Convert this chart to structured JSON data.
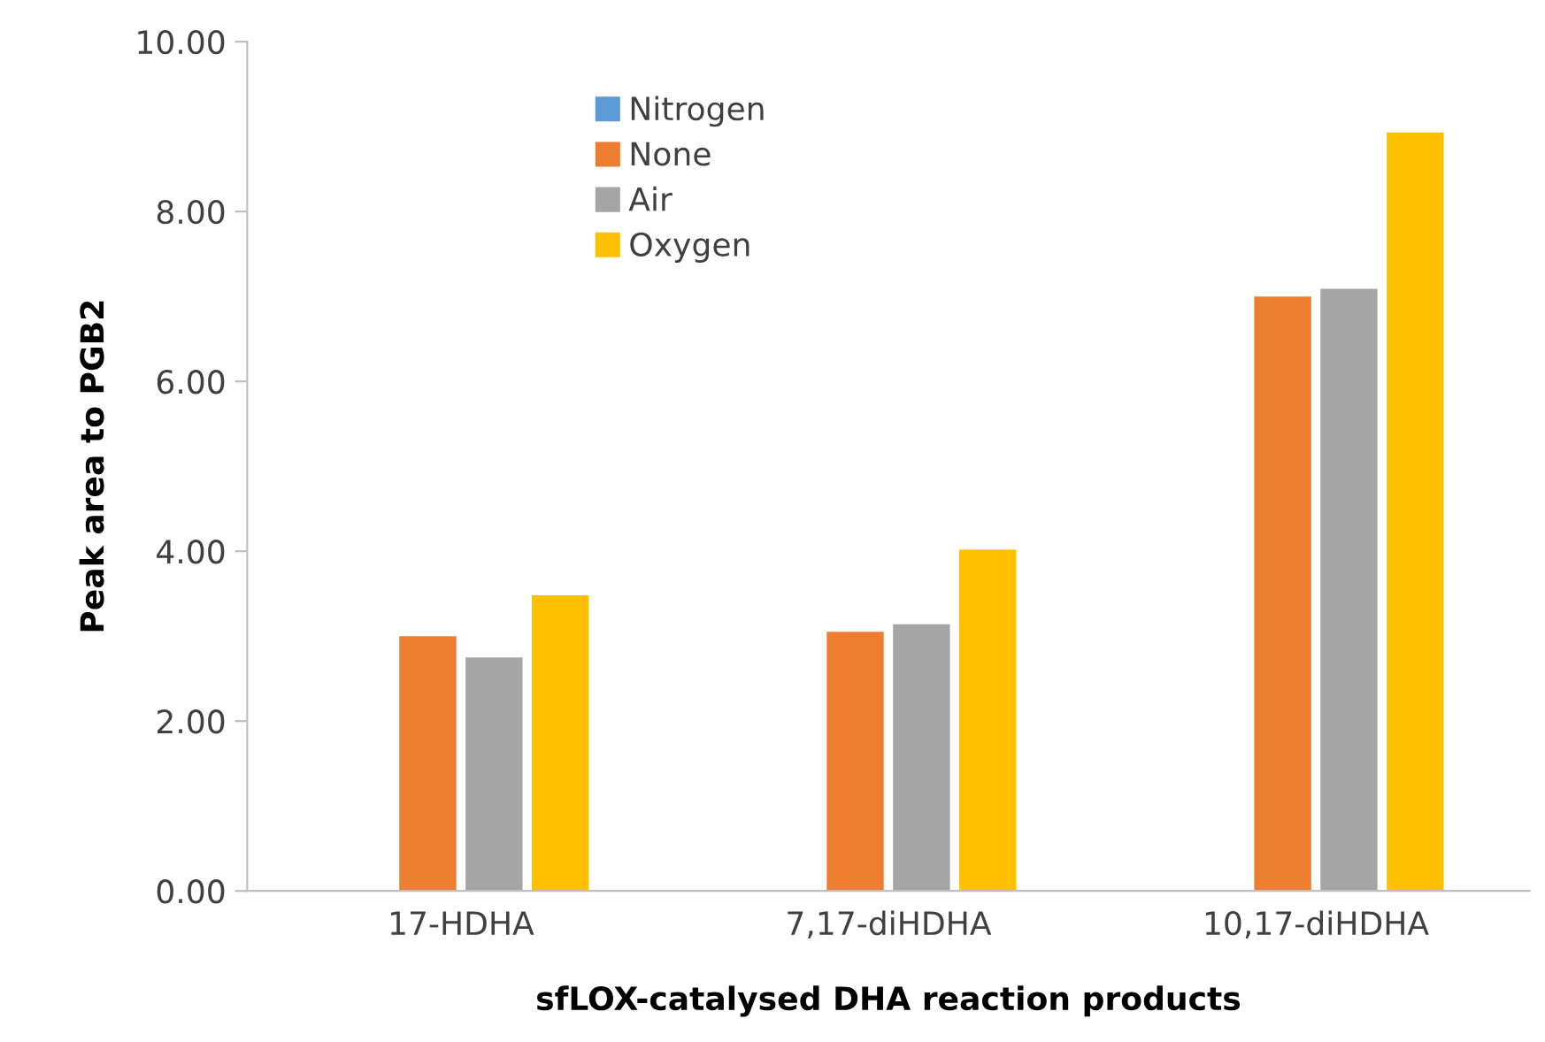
{
  "chart_data": {
    "type": "bar",
    "xlabel": "sfLOX-catalysed DHA reaction products",
    "ylabel": "Peak area to PGB2",
    "categories": [
      "17-HDHA",
      "7,17-diHDHA",
      "10,17-diHDHA"
    ],
    "series": [
      {
        "name": "Nitrogen",
        "color": "#5b9bd5",
        "values": [
          0,
          0,
          0
        ]
      },
      {
        "name": "None",
        "color": "#ed7d31",
        "values": [
          3.0,
          3.05,
          7.0
        ]
      },
      {
        "name": "Air",
        "color": "#a5a5a5",
        "values": [
          2.75,
          3.14,
          7.09
        ]
      },
      {
        "name": "Oxygen",
        "color": "#ffc000",
        "values": [
          3.48,
          4.02,
          8.93
        ]
      }
    ],
    "ylim": [
      0,
      10
    ],
    "yticks": [
      {
        "value": 0,
        "label": "0.00"
      },
      {
        "value": 2,
        "label": "2.00"
      },
      {
        "value": 4,
        "label": "4.00"
      },
      {
        "value": 6,
        "label": "6.00"
      },
      {
        "value": 8,
        "label": "8.00"
      },
      {
        "value": 10,
        "label": "10.00"
      }
    ],
    "grid": false,
    "legend": "top"
  }
}
